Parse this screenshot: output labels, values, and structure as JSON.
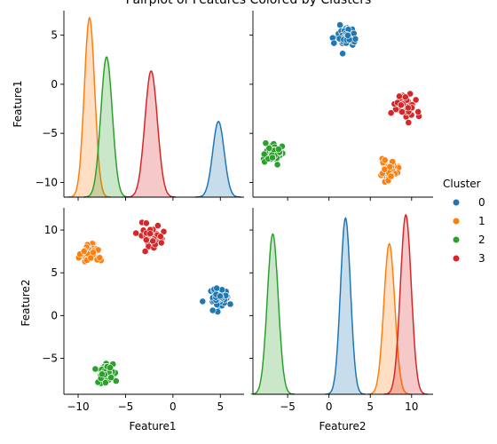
{
  "chart_data": {
    "type": "pairplot",
    "title": "Pairplot of Features Colored by Clusters",
    "variables": [
      "Feature1",
      "Feature2"
    ],
    "legend": {
      "title": "Cluster",
      "placement": "right",
      "entries": [
        {
          "label": "0",
          "color": "#1f77b4"
        },
        {
          "label": "1",
          "color": "#ff7f0e"
        },
        {
          "label": "2",
          "color": "#2ca02c"
        },
        {
          "label": "3",
          "color": "#d62728"
        }
      ]
    },
    "axes": {
      "Feature1": {
        "range": [
          -11.5,
          7.5
        ],
        "ticks": [
          -10,
          -5,
          0,
          5
        ],
        "tick_labels": [
          "−10",
          "−5",
          "0",
          "5"
        ]
      },
      "Feature2": {
        "range": [
          -9.2,
          12.6
        ],
        "ticks": [
          -5,
          0,
          5,
          10
        ],
        "tick_labels": [
          "−5",
          "0",
          "5",
          "10"
        ]
      }
    },
    "clusters": [
      {
        "label": "0",
        "color": "#1f77b4",
        "center": {
          "Feature1": 4.8,
          "Feature2": 2.0
        },
        "spread": {
          "Feature1": 0.55,
          "Feature2": 0.55
        },
        "kde_peak_f1": 2.7,
        "kde_peak_f2": 11.0
      },
      {
        "label": "1",
        "color": "#ff7f0e",
        "center": {
          "Feature1": -8.8,
          "Feature2": 7.3
        },
        "spread": {
          "Feature1": 0.5,
          "Feature2": 0.6
        },
        "kde_peak_f1": 6.4,
        "kde_peak_f2": 9.4
      },
      {
        "label": "2",
        "color": "#2ca02c",
        "center": {
          "Feature1": -7.0,
          "Feature2": -6.8
        },
        "spread": {
          "Feature1": 0.55,
          "Feature2": 0.6
        },
        "kde_peak_f1": 5.0,
        "kde_peak_f2": 10.0
      },
      {
        "label": "3",
        "color": "#d62728",
        "center": {
          "Feature1": -2.3,
          "Feature2": 9.3
        },
        "spread": {
          "Feature1": 0.6,
          "Feature2": 0.6
        },
        "kde_peak_f1": 4.5,
        "kde_peak_f2": 11.2
      }
    ],
    "points_per_cluster": 50
  }
}
